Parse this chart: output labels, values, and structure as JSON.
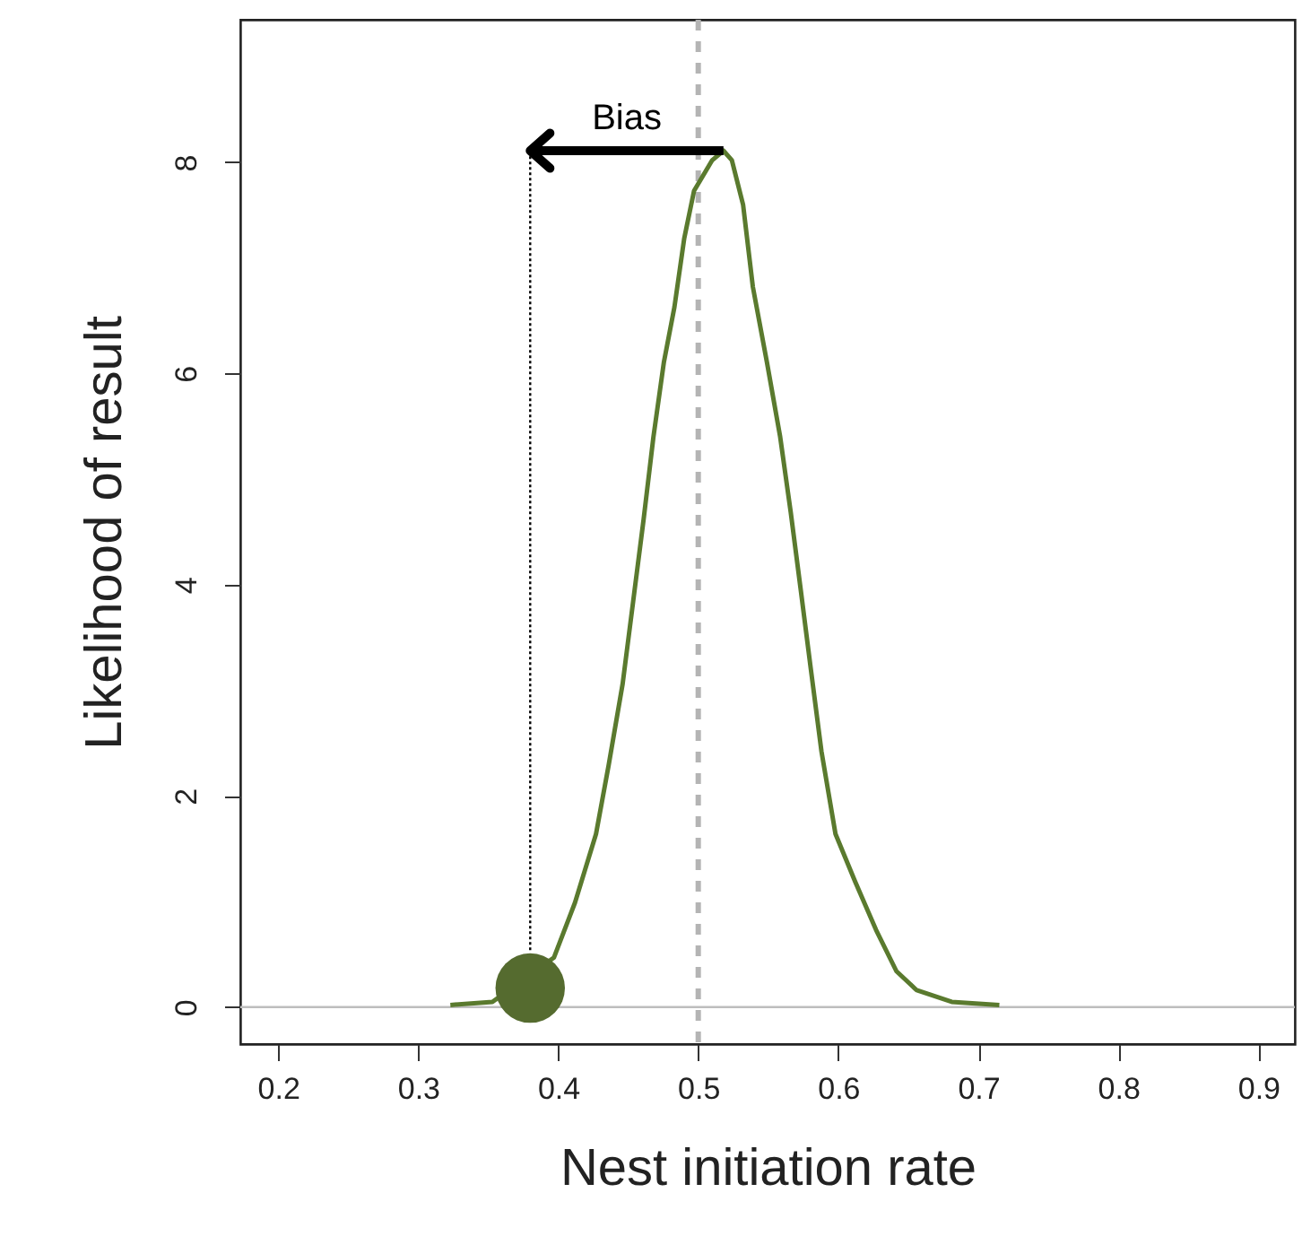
{
  "chart_data": {
    "type": "line",
    "xlabel": "Nest initiation rate",
    "ylabel": "Likelihood of result",
    "xlim": [
      0.173,
      0.926
    ],
    "ylim": [
      -0.35,
      9.35
    ],
    "xticks": [
      0.2,
      0.3,
      0.4,
      0.5,
      0.6,
      0.7,
      0.8,
      0.9
    ],
    "yticks": [
      0,
      2,
      4,
      6,
      8
    ],
    "grid": false,
    "series": [
      {
        "type": "line",
        "color": "#5a7a2e",
        "x": [
          0.323,
          0.353,
          0.397,
          0.412,
          0.427,
          0.436,
          0.446,
          0.4535,
          0.461,
          0.468,
          0.4755,
          0.483,
          0.49,
          0.497,
          0.51,
          0.518,
          0.524,
          0.532,
          0.539,
          0.549,
          0.5585,
          0.566,
          0.573,
          0.5805,
          0.588,
          0.598,
          0.612,
          0.627,
          0.6415,
          0.656,
          0.681,
          0.715
        ],
        "values": [
          0.02,
          0.05,
          0.47,
          0.99,
          1.64,
          2.29,
          3.06,
          3.84,
          4.62,
          5.4,
          6.11,
          6.63,
          7.28,
          7.73,
          8.02,
          8.11,
          8.02,
          7.6,
          6.82,
          6.11,
          5.4,
          4.69,
          3.97,
          3.19,
          2.42,
          1.64,
          1.19,
          0.73,
          0.34,
          0.16,
          0.05,
          0.02
        ]
      },
      {
        "type": "line",
        "color": "#000000",
        "line_style": "dotted",
        "x": [
          0.38,
          0.38
        ],
        "values": [
          0.54,
          8.11
        ]
      },
      {
        "type": "scatter",
        "color": "#556b2f",
        "marker": "circle",
        "x": [
          0.38
        ],
        "values": [
          0.18
        ]
      }
    ],
    "ref_lines": [
      {
        "axis": "y",
        "value": 0,
        "color": "#bebebe",
        "line_style": "solid"
      },
      {
        "axis": "x",
        "value": 0.5,
        "color": "#b4b4b4",
        "line_style": "dashed"
      }
    ],
    "annotations": [
      "Bias"
    ]
  }
}
